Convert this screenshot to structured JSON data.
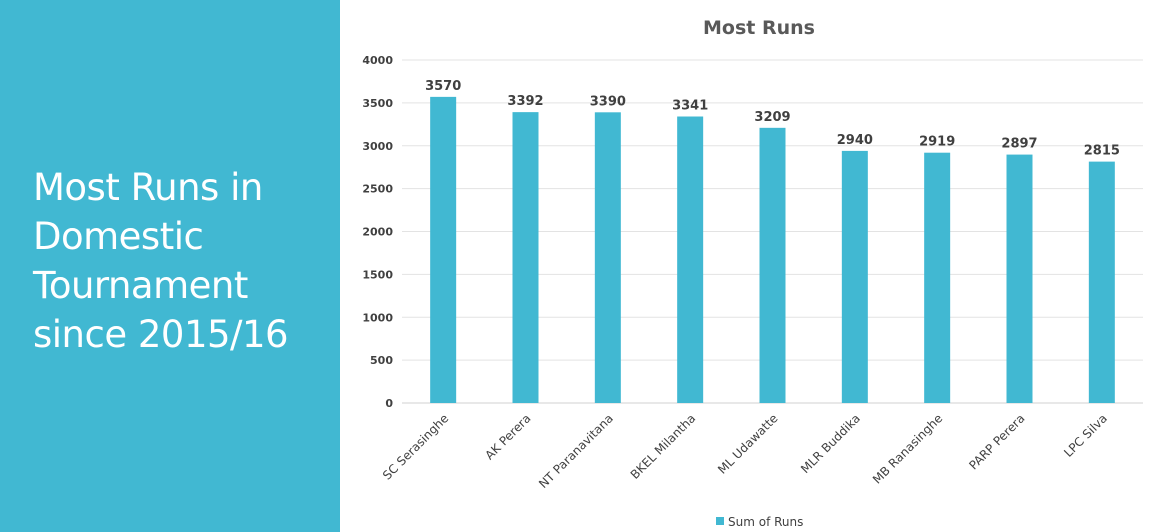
{
  "slide": {
    "title": "Most Runs in Domestic Tournament since 2015/16",
    "panel_color": "#41b8d2"
  },
  "chart_data": {
    "type": "bar",
    "title": "Most Runs",
    "categories": [
      "SC Serasinghe",
      "AK Perera",
      "NT Paranavitana",
      "BKEL Milantha",
      "ML Udawatte",
      "MLR Buddika",
      "MB Ranasinghe",
      "PARP Perera",
      "LPC Silva"
    ],
    "series": [
      {
        "name": "Sum of Runs",
        "values": [
          3570,
          3392,
          3390,
          3341,
          3209,
          2940,
          2919,
          2897,
          2815
        ],
        "color": "#41b8d2"
      }
    ],
    "yticks": [
      0,
      500,
      1000,
      1500,
      2000,
      2500,
      3000,
      3500,
      4000
    ],
    "ylim": [
      0,
      4000
    ],
    "xlabel": "",
    "ylabel": "",
    "grid": true,
    "legend": "bottom",
    "data_labels": true
  }
}
